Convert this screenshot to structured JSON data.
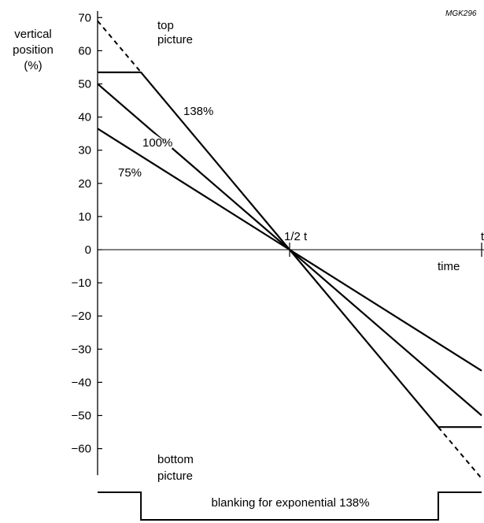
{
  "chart_data": {
    "type": "line",
    "title": "",
    "code": "MGK296",
    "ylabel_lines": [
      "vertical",
      "position",
      "(%)"
    ],
    "xlabel": "time",
    "ylim": [
      -70,
      70
    ],
    "xlim": [
      0,
      1
    ],
    "y_ticks": [
      70,
      60,
      50,
      40,
      30,
      20,
      10,
      0,
      -10,
      -20,
      -30,
      -40,
      -50,
      -60
    ],
    "y_tick_labels": [
      "70",
      "60",
      "50",
      "40",
      "30",
      "20",
      "10",
      "0",
      "−10",
      "−20",
      "−30",
      "−40",
      "−50",
      "−60"
    ],
    "x_ticks": [
      {
        "x": 0.5,
        "label": "1/2 t"
      },
      {
        "x": 1.0,
        "label": "t"
      }
    ],
    "region_labels": {
      "top": [
        "top",
        "picture"
      ],
      "bottom": [
        "bottom",
        "picture"
      ]
    },
    "series": [
      {
        "name": "138%",
        "x": [
          0,
          0.113,
          0.5,
          0.887,
          1.0
        ],
        "y": [
          53.5,
          53.5,
          0,
          -53.5,
          -53.5
        ]
      },
      {
        "name": "100%",
        "x": [
          0,
          0.5,
          1.0
        ],
        "y": [
          50,
          0,
          -50
        ]
      },
      {
        "name": "75%",
        "x": [
          0,
          0.5,
          1.0
        ],
        "y": [
          36.5,
          0,
          -36.5
        ]
      }
    ],
    "dashed_extensions": [
      {
        "x": [
          0,
          0.113
        ],
        "y": [
          69,
          53.5
        ]
      },
      {
        "x": [
          0.887,
          1.0
        ],
        "y": [
          -53.5,
          -69
        ]
      }
    ],
    "blanking": {
      "label": "blanking for exponential 138%",
      "high_until": 0.113,
      "high_from": 0.887
    }
  }
}
